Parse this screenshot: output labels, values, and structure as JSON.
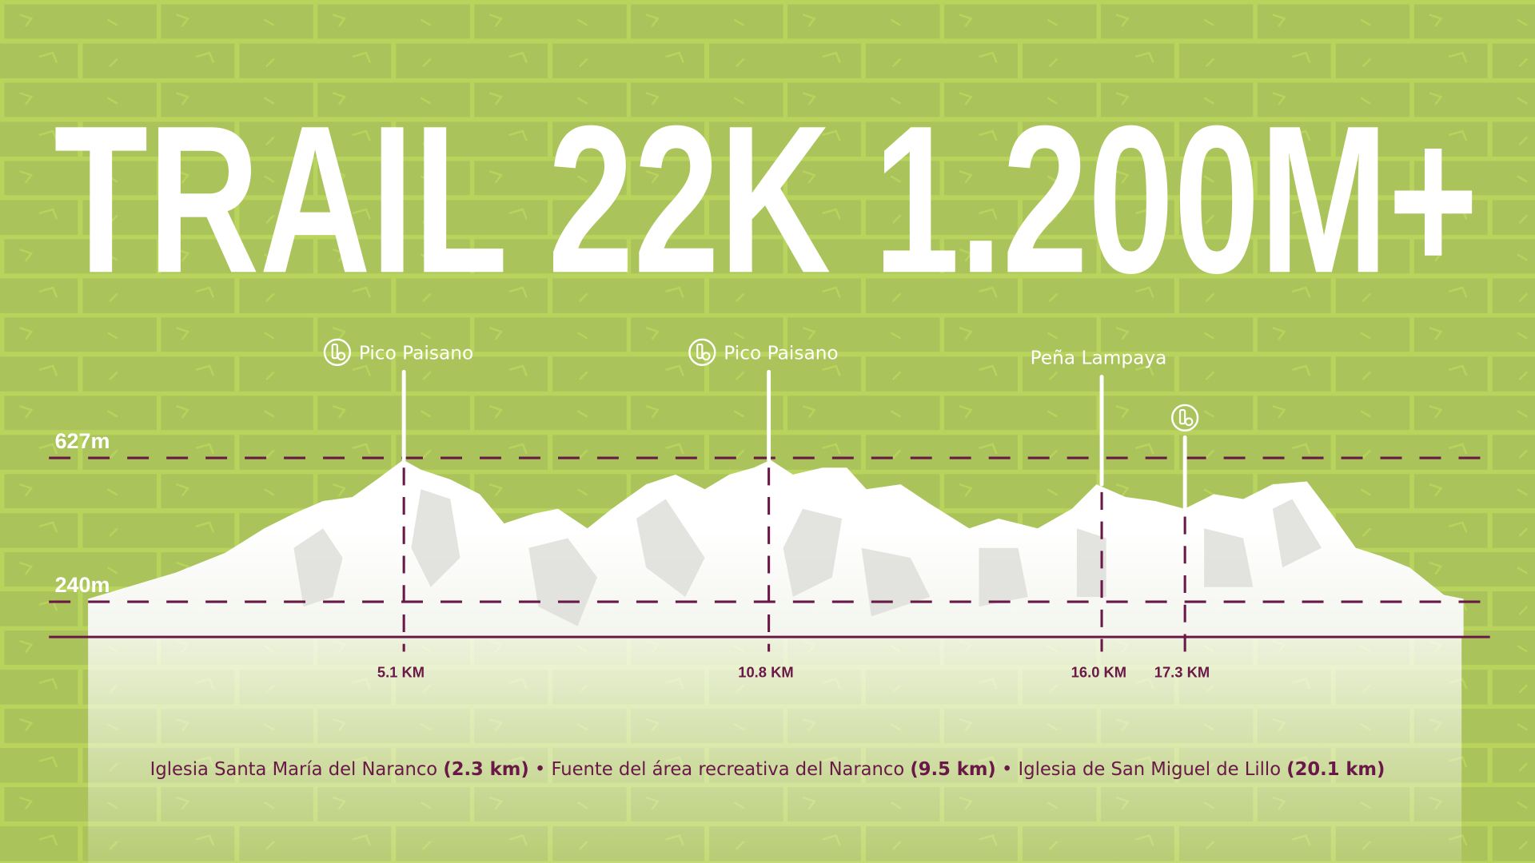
{
  "colors": {
    "background": "#aac35b",
    "brick_light": "#b9d45c",
    "accent": "#6a1847",
    "mountain": "#ffffff"
  },
  "chart_data": {
    "type": "area",
    "title": "TRAIL 22K 1.200M+",
    "y_reference_lines": [
      {
        "label": "627m",
        "value": 627
      },
      {
        "label": "240m",
        "value": 240
      }
    ],
    "markers": [
      {
        "km": 5.1,
        "label": "5.1 KM",
        "peak_name": "Pico Paisano",
        "icon": "water-bottle-icon"
      },
      {
        "km": 10.8,
        "label": "10.8 KM",
        "peak_name": "Pico Paisano",
        "icon": "water-bottle-icon"
      },
      {
        "km": 16.0,
        "label": "16.0 KM",
        "peak_name": "Peña Lampaya",
        "icon": ""
      },
      {
        "km": 17.3,
        "label": "17.3 KM",
        "peak_name": "",
        "icon": "water-bottle-icon"
      }
    ],
    "x_range_km": [
      0,
      22
    ],
    "grid": false
  },
  "footer": {
    "items": [
      {
        "name": "Iglesia Santa María del Naranco",
        "dist": "(2.3 km)"
      },
      {
        "name": "Fuente del área recreativa del Naranco",
        "dist": "(9.5 km)"
      },
      {
        "name": "Iglesia de San Miguel de Lillo",
        "dist": "(20.1 km)"
      }
    ],
    "separator": "•"
  }
}
